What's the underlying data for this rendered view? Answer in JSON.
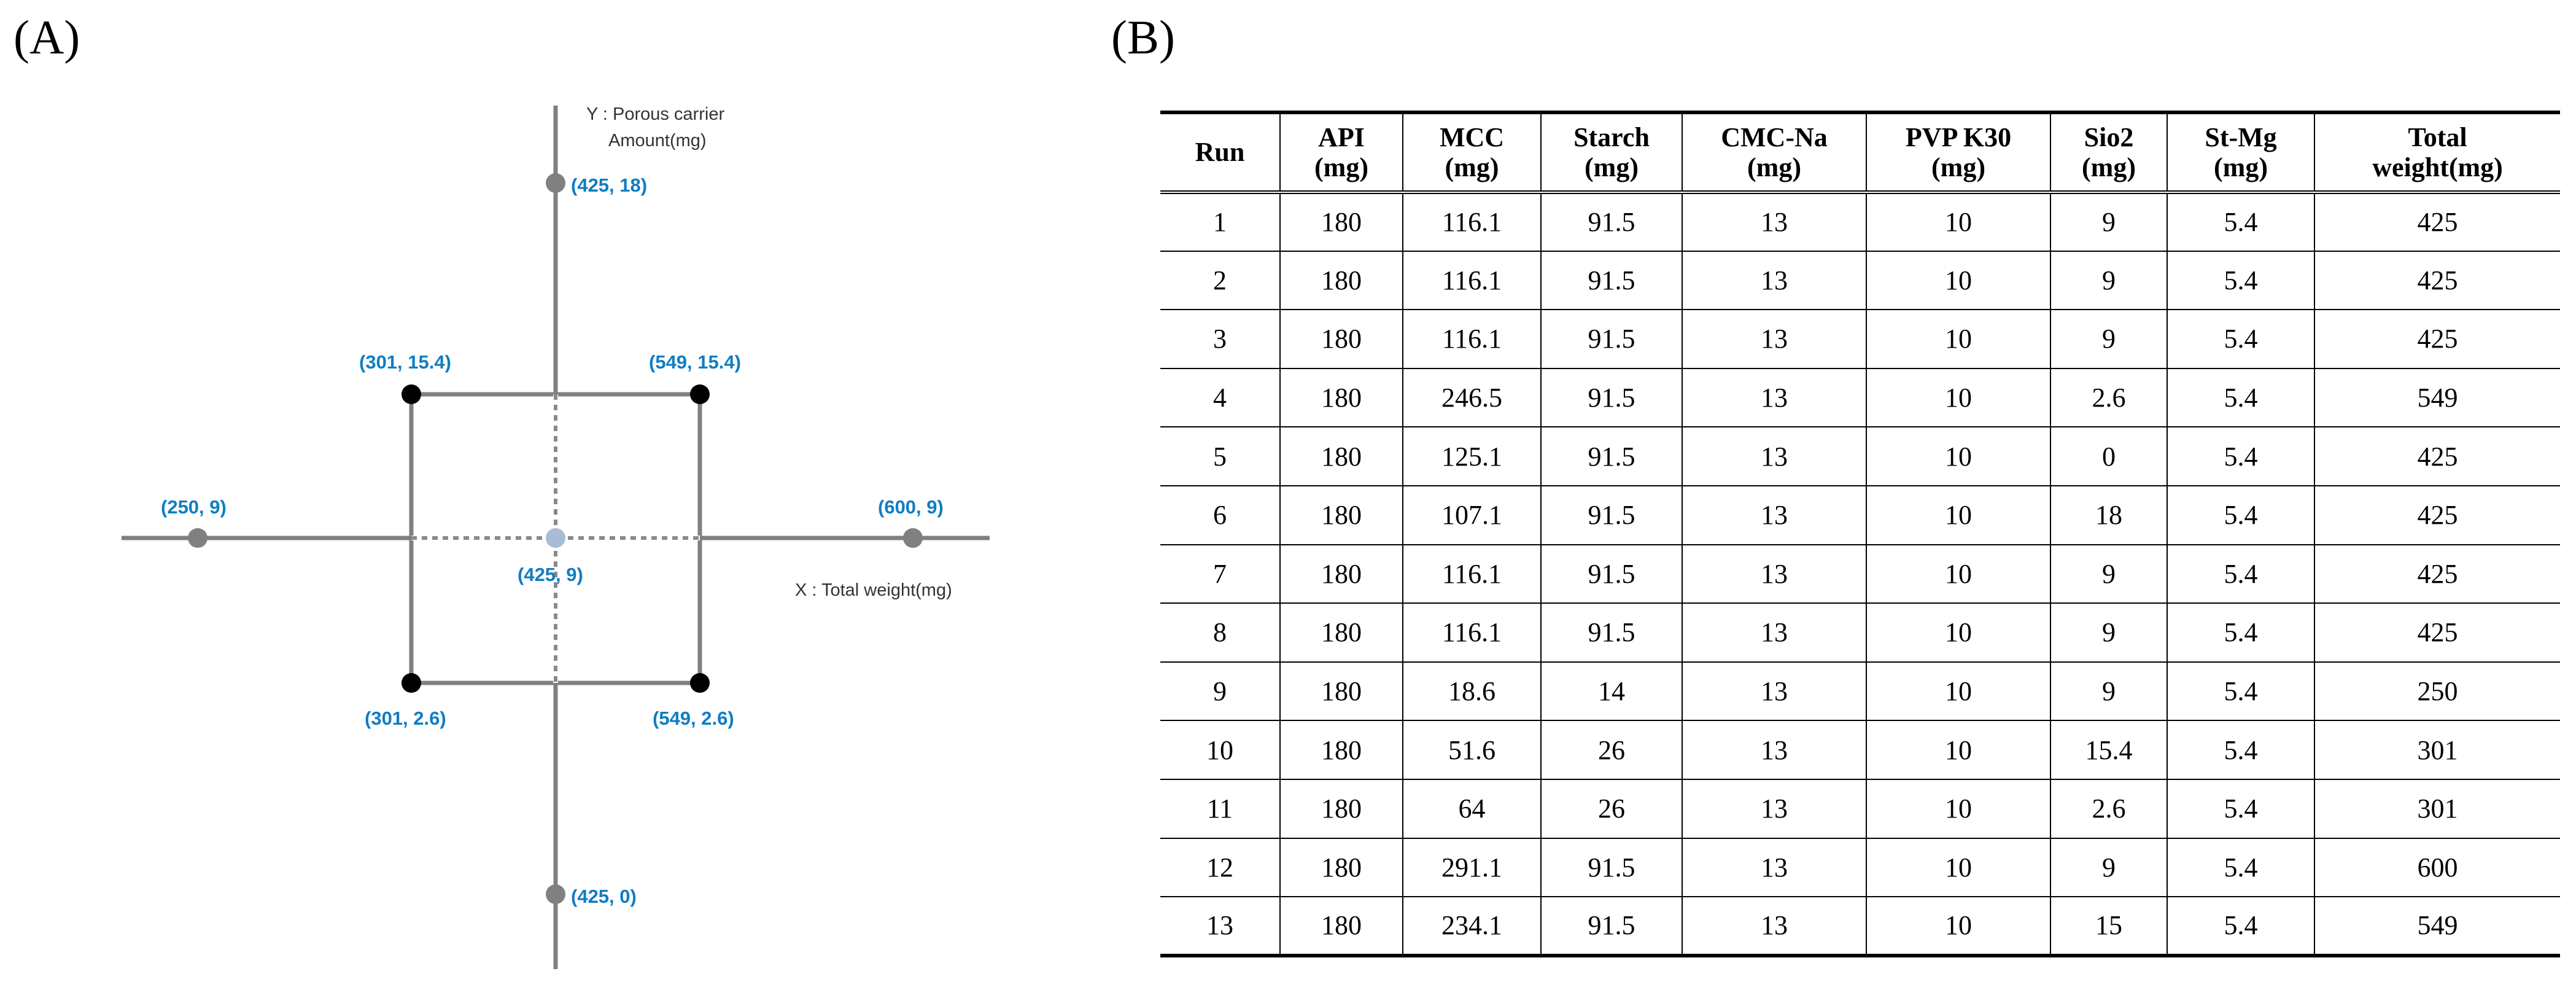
{
  "panels": {
    "a_label": "(A)",
    "b_label": "(B)"
  },
  "diagram": {
    "y_axis_label_line1": "Y : Porous carrier",
    "y_axis_label_line2": "Amount(mg)",
    "x_axis_label": "X : Total weight(mg)",
    "points": [
      {
        "id": "top",
        "label": "(425, 18)",
        "color": "#808080"
      },
      {
        "id": "upper-left",
        "label": "(301, 15.4)",
        "color": "#000000"
      },
      {
        "id": "upper-right",
        "label": "(549, 15.4)",
        "color": "#000000"
      },
      {
        "id": "left",
        "label": "(250, 9)",
        "color": "#808080"
      },
      {
        "id": "center",
        "label": "(425, 9)",
        "color": "#a9bcd6"
      },
      {
        "id": "right",
        "label": "(600, 9)",
        "color": "#808080"
      },
      {
        "id": "lower-left",
        "label": "(301, 2.6)",
        "color": "#000000"
      },
      {
        "id": "lower-right",
        "label": "(549, 2.6)",
        "color": "#000000"
      },
      {
        "id": "bottom",
        "label": "(425, 0)",
        "color": "#808080"
      }
    ],
    "label_color": "#0f7dc2"
  },
  "table": {
    "headers": [
      {
        "line1": "Run",
        "line2": ""
      },
      {
        "line1": "API",
        "line2": "(mg)"
      },
      {
        "line1": "MCC",
        "line2": "(mg)"
      },
      {
        "line1": "Starch",
        "line2": "(mg)"
      },
      {
        "line1": "CMC-Na",
        "line2": "(mg)"
      },
      {
        "line1": "PVP K30",
        "line2": "(mg)"
      },
      {
        "line1": "Sio2",
        "line2": "(mg)"
      },
      {
        "line1": "St-Mg",
        "line2": "(mg)"
      },
      {
        "line1": "Total",
        "line2": "weight(mg)"
      }
    ],
    "rows": [
      [
        "1",
        "180",
        "116.1",
        "91.5",
        "13",
        "10",
        "9",
        "5.4",
        "425"
      ],
      [
        "2",
        "180",
        "116.1",
        "91.5",
        "13",
        "10",
        "9",
        "5.4",
        "425"
      ],
      [
        "3",
        "180",
        "116.1",
        "91.5",
        "13",
        "10",
        "9",
        "5.4",
        "425"
      ],
      [
        "4",
        "180",
        "246.5",
        "91.5",
        "13",
        "10",
        "2.6",
        "5.4",
        "549"
      ],
      [
        "5",
        "180",
        "125.1",
        "91.5",
        "13",
        "10",
        "0",
        "5.4",
        "425"
      ],
      [
        "6",
        "180",
        "107.1",
        "91.5",
        "13",
        "10",
        "18",
        "5.4",
        "425"
      ],
      [
        "7",
        "180",
        "116.1",
        "91.5",
        "13",
        "10",
        "9",
        "5.4",
        "425"
      ],
      [
        "8",
        "180",
        "116.1",
        "91.5",
        "13",
        "10",
        "9",
        "5.4",
        "425"
      ],
      [
        "9",
        "180",
        "18.6",
        "14",
        "13",
        "10",
        "9",
        "5.4",
        "250"
      ],
      [
        "10",
        "180",
        "51.6",
        "26",
        "13",
        "10",
        "15.4",
        "5.4",
        "301"
      ],
      [
        "11",
        "180",
        "64",
        "26",
        "13",
        "10",
        "2.6",
        "5.4",
        "301"
      ],
      [
        "12",
        "180",
        "291.1",
        "91.5",
        "13",
        "10",
        "9",
        "5.4",
        "600"
      ],
      [
        "13",
        "180",
        "234.1",
        "91.5",
        "13",
        "10",
        "15",
        "5.4",
        "549"
      ]
    ]
  }
}
